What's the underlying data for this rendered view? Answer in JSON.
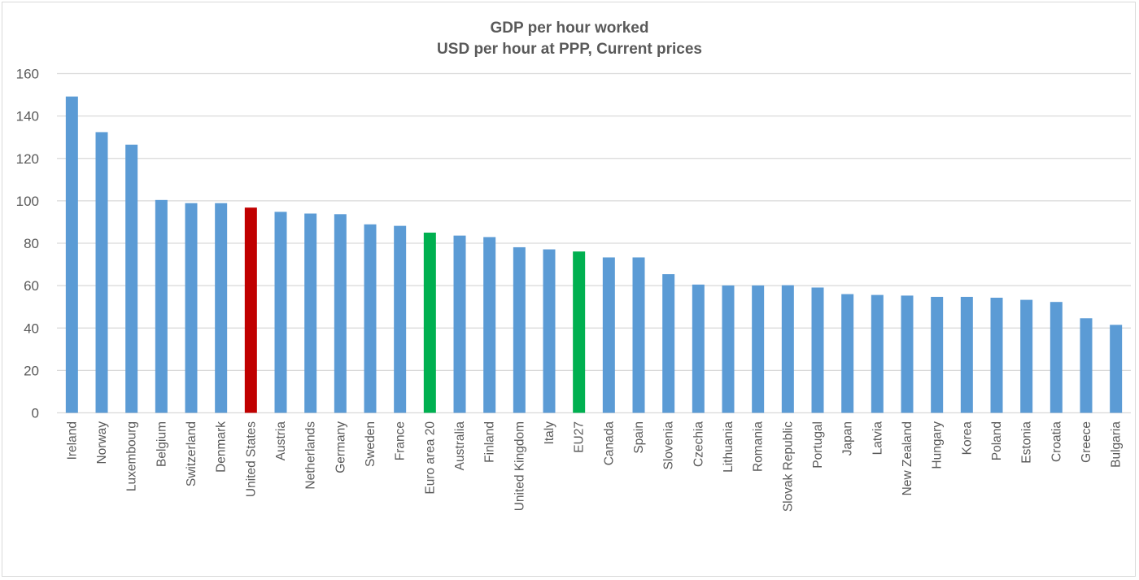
{
  "chart_data": {
    "type": "bar",
    "title": "GDP per hour worked",
    "subtitle": "USD per hour at PPP, Current prices",
    "xlabel": "",
    "ylabel": "",
    "ylim": [
      0,
      160
    ],
    "yticks": [
      0,
      20,
      40,
      60,
      80,
      100,
      120,
      140,
      160
    ],
    "grid": true,
    "categories": [
      "Ireland",
      "Norway",
      "Luxembourg",
      "Belgium",
      "Switzerland",
      "Denmark",
      "United States",
      "Austria",
      "Netherlands",
      "Germany",
      "Sweden",
      "France",
      "Euro area 20",
      "Australia",
      "Finland",
      "United Kingdom",
      "Italy",
      "EU27",
      "Canada",
      "Spain",
      "Slovenia",
      "Czechia",
      "Lithuania",
      "Romania",
      "Slovak Republic",
      "Portugal",
      "Japan",
      "Latvia",
      "New Zealand",
      "Hungary",
      "Korea",
      "Poland",
      "Estonia",
      "Croatia",
      "Greece",
      "Bulgaria"
    ],
    "values": [
      149.2,
      132.4,
      126.5,
      100.4,
      98.9,
      98.9,
      96.8,
      94.8,
      94.0,
      93.7,
      88.9,
      88.2,
      85.0,
      83.6,
      82.9,
      78.1,
      77.1,
      76.1,
      73.3,
      73.3,
      65.4,
      60.5,
      60.1,
      60.1,
      60.2,
      59.1,
      56.0,
      55.6,
      55.3,
      54.7,
      54.7,
      54.3,
      53.3,
      52.3,
      44.6,
      41.5
    ],
    "colors": {
      "default": "#5b9bd5",
      "United States": "#c00000",
      "Euro area 20": "#00b050",
      "EU27": "#00b050"
    }
  }
}
